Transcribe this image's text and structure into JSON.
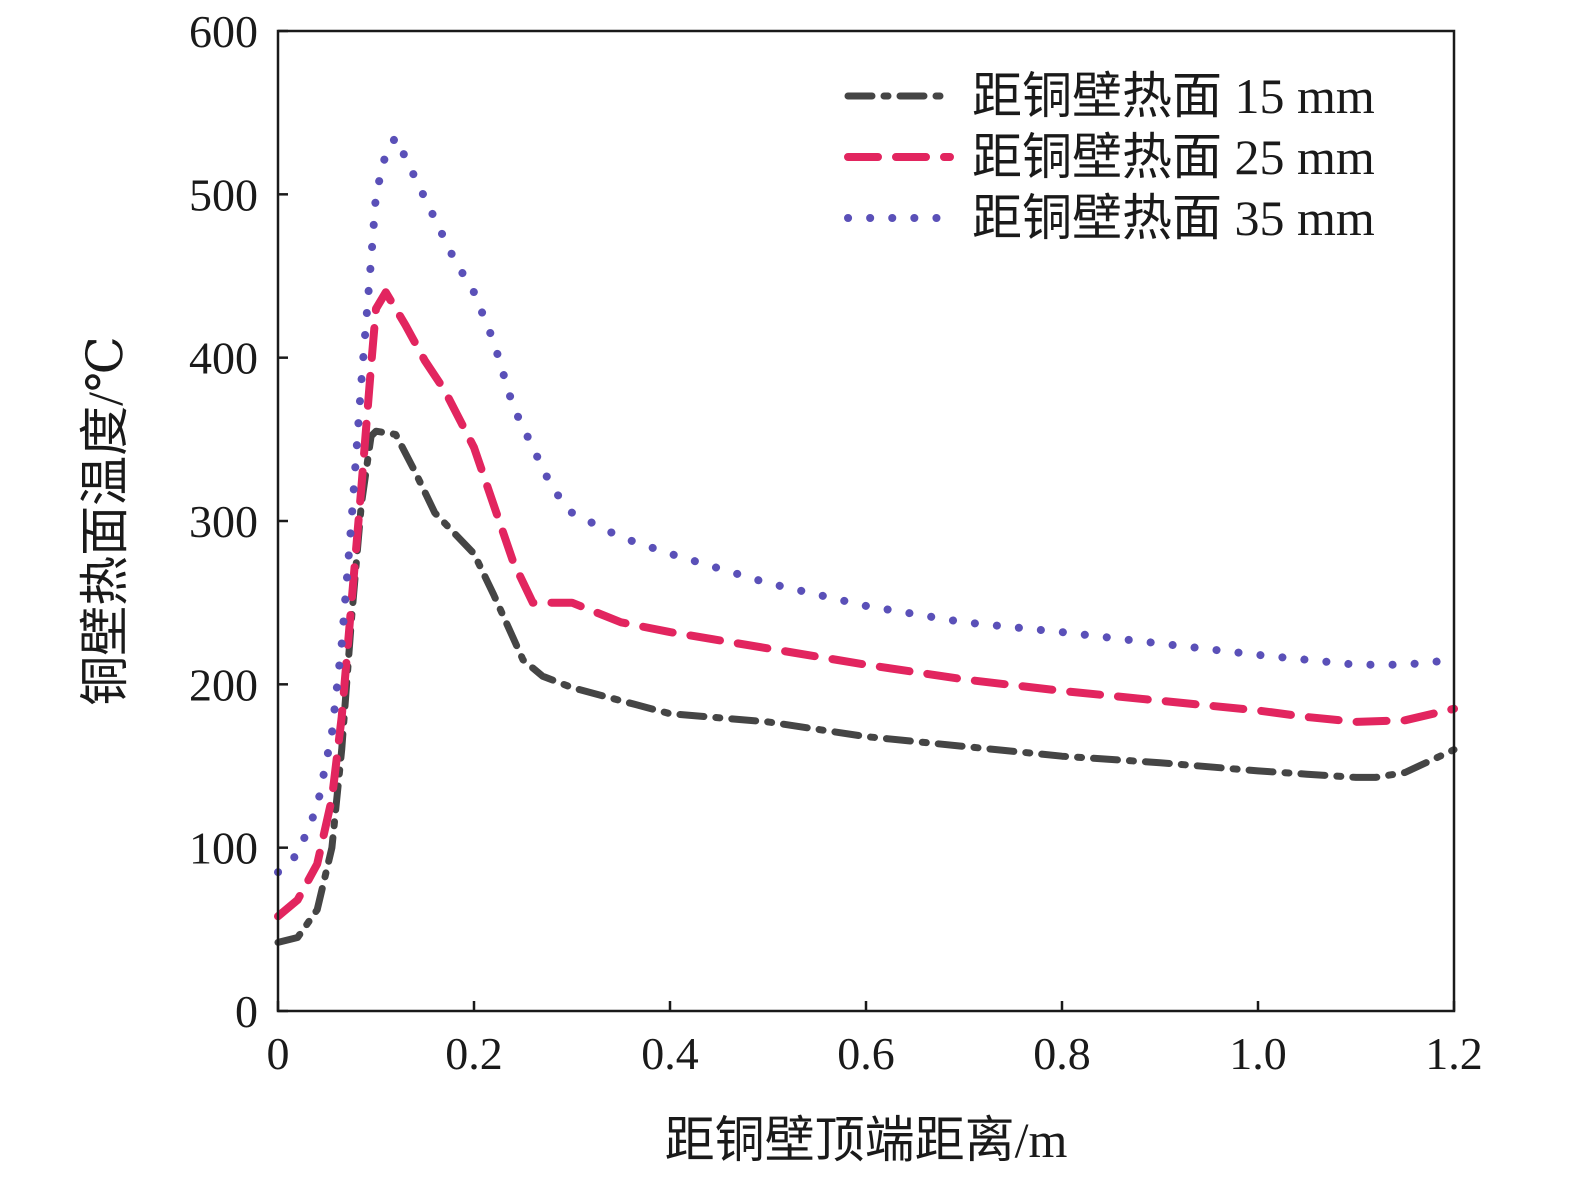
{
  "chart_data": {
    "type": "line",
    "title": "",
    "xlabel": "距铜壁顶端距离/m",
    "ylabel": "铜壁热面温度/℃",
    "xlim": [
      0,
      1.2
    ],
    "ylim": [
      0,
      600
    ],
    "xticks": [
      "0",
      "0.2",
      "0.4",
      "0.6",
      "0.8",
      "1.0",
      "1.2"
    ],
    "yticks": [
      "0",
      "100",
      "200",
      "300",
      "400",
      "500",
      "600"
    ],
    "grid": false,
    "legend_position": "top-right",
    "series": [
      {
        "name": "距铜壁热面 15 mm",
        "style": "dashdot",
        "color": "#454545",
        "x": [
          0,
          0.02,
          0.04,
          0.055,
          0.065,
          0.075,
          0.085,
          0.095,
          0.1,
          0.12,
          0.14,
          0.16,
          0.2,
          0.22,
          0.25,
          0.27,
          0.3,
          0.35,
          0.4,
          0.5,
          0.6,
          0.7,
          0.8,
          0.9,
          1.0,
          1.05,
          1.1,
          1.12,
          1.15,
          1.2
        ],
        "y": [
          42,
          45,
          62,
          100,
          160,
          240,
          310,
          352,
          355,
          353,
          330,
          305,
          280,
          255,
          215,
          205,
          198,
          190,
          182,
          177,
          168,
          162,
          156,
          152,
          147,
          145,
          143,
          143,
          146,
          160
        ]
      },
      {
        "name": "距铜壁热面 25 mm",
        "style": "dashed",
        "color": "#e2255f",
        "x": [
          0,
          0.02,
          0.04,
          0.055,
          0.065,
          0.075,
          0.085,
          0.095,
          0.1,
          0.11,
          0.13,
          0.15,
          0.17,
          0.2,
          0.22,
          0.24,
          0.26,
          0.3,
          0.35,
          0.4,
          0.5,
          0.6,
          0.7,
          0.8,
          0.9,
          1.0,
          1.05,
          1.1,
          1.15,
          1.2
        ],
        "y": [
          58,
          68,
          90,
          130,
          180,
          250,
          320,
          395,
          430,
          440,
          420,
          398,
          380,
          345,
          310,
          275,
          250,
          250,
          238,
          232,
          222,
          212,
          203,
          196,
          190,
          184,
          180,
          177,
          178,
          185
        ]
      },
      {
        "name": "距铜壁热面 35 mm",
        "style": "dotted",
        "color": "#5a50b8",
        "x": [
          0,
          0.02,
          0.04,
          0.055,
          0.065,
          0.075,
          0.085,
          0.095,
          0.1,
          0.11,
          0.12,
          0.14,
          0.16,
          0.18,
          0.2,
          0.22,
          0.24,
          0.26,
          0.28,
          0.3,
          0.35,
          0.4,
          0.5,
          0.6,
          0.7,
          0.8,
          0.9,
          1.0,
          1.05,
          1.1,
          1.15,
          1.2
        ],
        "y": [
          85,
          96,
          125,
          170,
          225,
          300,
          385,
          460,
          500,
          525,
          535,
          510,
          485,
          460,
          440,
          410,
          370,
          345,
          320,
          305,
          290,
          280,
          262,
          248,
          238,
          232,
          225,
          218,
          215,
          212,
          212,
          215
        ]
      }
    ]
  }
}
